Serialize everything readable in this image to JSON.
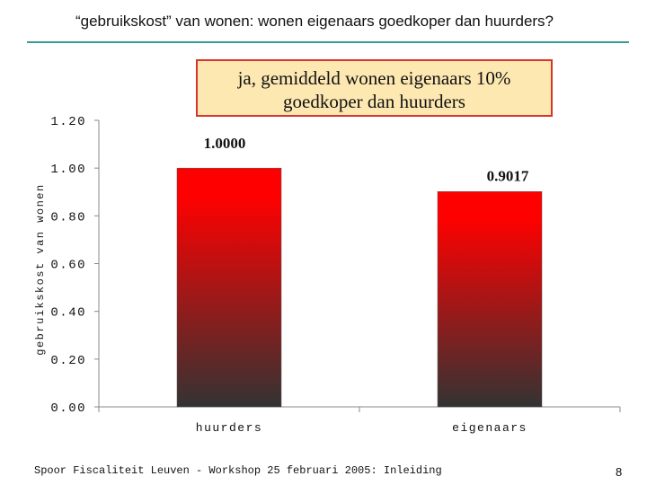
{
  "slide": {
    "title": "“gebruikskost” van wonen: wonen eigenaars goedkoper dan huurders?",
    "footer": "Spoor Fiscaliteit Leuven - Workshop 25 februari 2005: Inleiding",
    "page_number": "8"
  },
  "callout": {
    "line1": "ja, gemiddeld wonen eigenaars 10%",
    "line2": "goedkoper dan huurders"
  },
  "colors": {
    "bar_top": "#ff0000",
    "bar_bottom": "#333333",
    "rule": "#3a9a96",
    "callout_fill": "#fde8b2",
    "callout_border": "#d9342b"
  },
  "chart_data": {
    "type": "bar",
    "categories": [
      "huurders",
      "eigenaars"
    ],
    "values": [
      1.0,
      0.9017
    ],
    "value_labels": [
      "1.0000",
      "0.9017"
    ],
    "title": "",
    "xlabel": "",
    "ylabel": "gebruikskost van wonen",
    "ylim": [
      0,
      1.2
    ],
    "yticks": [
      0,
      0.2,
      0.4,
      0.6,
      0.8,
      1.0,
      1.2
    ],
    "ytick_labels": [
      "0.00",
      "0.20",
      "0.40",
      "0.60",
      "0.80",
      "1.00",
      "1.20"
    ],
    "grid": false,
    "legend": "none"
  }
}
